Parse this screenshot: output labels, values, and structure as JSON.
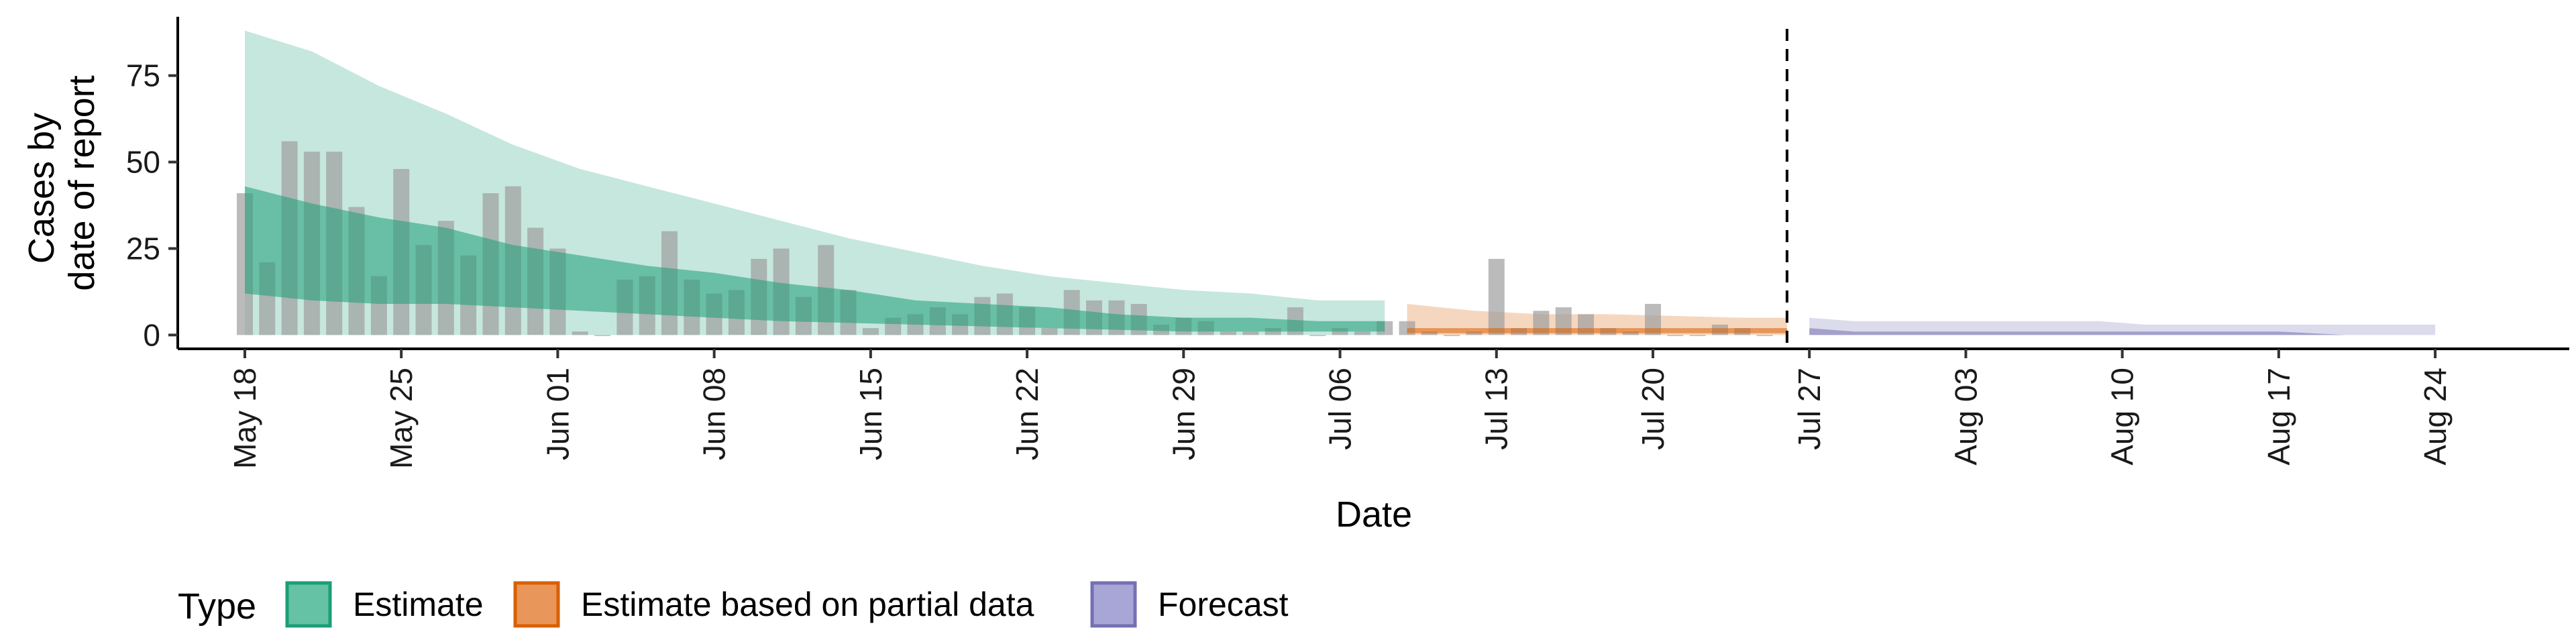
{
  "chart_data": {
    "type": "bar",
    "ylabel_lines": [
      "Cases by",
      "date of report"
    ],
    "xlabel": "Date",
    "x_range": [
      "2020-05-15",
      "2020-08-30"
    ],
    "ylim": [
      -4,
      92
    ],
    "yticks": [
      0,
      25,
      50,
      75
    ],
    "xtick_dates": [
      "2020-05-18",
      "2020-05-25",
      "2020-06-01",
      "2020-06-08",
      "2020-06-15",
      "2020-06-22",
      "2020-06-29",
      "2020-07-06",
      "2020-07-13",
      "2020-07-20",
      "2020-07-27",
      "2020-08-03",
      "2020-08-10",
      "2020-08-17",
      "2020-08-24"
    ],
    "xtick_labels": [
      "May 18",
      "May 25",
      "Jun 01",
      "Jun 08",
      "Jun 15",
      "Jun 22",
      "Jun 29",
      "Jul 06",
      "Jul 13",
      "Jul 20",
      "Jul 27",
      "Aug 03",
      "Aug 10",
      "Aug 17",
      "Aug 24"
    ],
    "grid": false,
    "vline_date": "2020-07-26",
    "legend": {
      "title": "Type",
      "placement": "bottom-left",
      "items": [
        {
          "label": "Estimate",
          "fill": "#66c2a5",
          "border": "#1b9e77"
        },
        {
          "label": "Estimate based on partial data",
          "fill": "#e8965a",
          "border": "#d95f02"
        },
        {
          "label": "Forecast",
          "fill": "#a8a6d6",
          "border": "#7570b3"
        }
      ]
    },
    "bars": {
      "color": "#9e9e9e",
      "dates": [
        "2020-05-18",
        "2020-05-19",
        "2020-05-20",
        "2020-05-21",
        "2020-05-22",
        "2020-05-23",
        "2020-05-24",
        "2020-05-25",
        "2020-05-26",
        "2020-05-27",
        "2020-05-28",
        "2020-05-29",
        "2020-05-30",
        "2020-05-31",
        "2020-06-01",
        "2020-06-02",
        "2020-06-03",
        "2020-06-04",
        "2020-06-05",
        "2020-06-06",
        "2020-06-07",
        "2020-06-08",
        "2020-06-09",
        "2020-06-10",
        "2020-06-11",
        "2020-06-12",
        "2020-06-13",
        "2020-06-14",
        "2020-06-15",
        "2020-06-16",
        "2020-06-17",
        "2020-06-18",
        "2020-06-19",
        "2020-06-20",
        "2020-06-21",
        "2020-06-22",
        "2020-06-23",
        "2020-06-24",
        "2020-06-25",
        "2020-06-26",
        "2020-06-27",
        "2020-06-28",
        "2020-06-29",
        "2020-06-30",
        "2020-07-01",
        "2020-07-02",
        "2020-07-03",
        "2020-07-04",
        "2020-07-05",
        "2020-07-06",
        "2020-07-07",
        "2020-07-08",
        "2020-07-09",
        "2020-07-10",
        "2020-07-11",
        "2020-07-12",
        "2020-07-13",
        "2020-07-14",
        "2020-07-15",
        "2020-07-16",
        "2020-07-17",
        "2020-07-18",
        "2020-07-19",
        "2020-07-20",
        "2020-07-21",
        "2020-07-22",
        "2020-07-23",
        "2020-07-24",
        "2020-07-25"
      ],
      "values": [
        41,
        21,
        56,
        53,
        53,
        37,
        17,
        48,
        26,
        33,
        23,
        41,
        43,
        31,
        25,
        1,
        0,
        16,
        17,
        30,
        16,
        12,
        13,
        22,
        25,
        11,
        26,
        13,
        2,
        5,
        6,
        8,
        6,
        11,
        12,
        8,
        2,
        13,
        10,
        10,
        9,
        3,
        5,
        4,
        1,
        1,
        2,
        8,
        0,
        2,
        1,
        4,
        4,
        1,
        0,
        1,
        22,
        2,
        7,
        8,
        6,
        2,
        1,
        9,
        0,
        0,
        3,
        2,
        0
      ]
    },
    "series": [
      {
        "name": "Estimate",
        "color": "#1b9e77",
        "inner_opacity": 0.55,
        "outer_opacity": 0.25,
        "x": [
          "2020-05-18",
          "2020-05-21",
          "2020-05-24",
          "2020-05-27",
          "2020-05-30",
          "2020-06-02",
          "2020-06-05",
          "2020-06-08",
          "2020-06-11",
          "2020-06-14",
          "2020-06-17",
          "2020-06-20",
          "2020-06-23",
          "2020-06-26",
          "2020-06-29",
          "2020-07-02",
          "2020-07-05",
          "2020-07-08"
        ],
        "outer_low": [
          0,
          0,
          0,
          0,
          0,
          0,
          0,
          0,
          0,
          0,
          0,
          0,
          0,
          0,
          0,
          0,
          0,
          0
        ],
        "outer_high": [
          88,
          82,
          72,
          64,
          55,
          48,
          43,
          38,
          33,
          28,
          24,
          20,
          17,
          15,
          13,
          12,
          10,
          10
        ],
        "inner_low": [
          12,
          10,
          9,
          9,
          8,
          7,
          6,
          5,
          4,
          3.5,
          3,
          2.5,
          2,
          1.5,
          1,
          1,
          1,
          1
        ],
        "inner_high": [
          43,
          38,
          34,
          31,
          26,
          23,
          20,
          18,
          15,
          13,
          10,
          9,
          8,
          6,
          5,
          5,
          4,
          4
        ]
      },
      {
        "name": "Estimate based on partial data",
        "color": "#d95f02",
        "inner_opacity": 0.55,
        "outer_opacity": 0.25,
        "x": [
          "2020-07-09",
          "2020-07-12",
          "2020-07-15",
          "2020-07-18",
          "2020-07-21",
          "2020-07-24",
          "2020-07-26"
        ],
        "outer_low": [
          0,
          0,
          0,
          0,
          0,
          0,
          0
        ],
        "outer_high": [
          9,
          7,
          6,
          6,
          5.5,
          5,
          5
        ],
        "inner_low": [
          0.5,
          0.5,
          0.5,
          0.5,
          0.5,
          0.5,
          0.5
        ],
        "inner_high": [
          2,
          2,
          2,
          2,
          2,
          2,
          2
        ]
      },
      {
        "name": "Forecast",
        "color": "#7570b3",
        "inner_opacity": 0.55,
        "outer_opacity": 0.25,
        "x": [
          "2020-07-27",
          "2020-07-29",
          "2020-08-01",
          "2020-08-05",
          "2020-08-09",
          "2020-08-11",
          "2020-08-15",
          "2020-08-17",
          "2020-08-20",
          "2020-08-24"
        ],
        "outer_low": [
          0,
          0,
          0,
          0,
          0,
          0,
          0,
          0,
          0,
          0
        ],
        "outer_high": [
          5,
          4,
          4,
          4,
          4,
          3,
          3,
          3,
          3,
          3
        ],
        "inner_low": [
          0,
          0,
          0,
          0,
          0,
          0,
          0,
          0,
          0,
          0
        ],
        "inner_high": [
          2,
          1,
          1,
          1,
          1,
          1,
          1,
          1,
          0,
          0
        ]
      }
    ]
  }
}
